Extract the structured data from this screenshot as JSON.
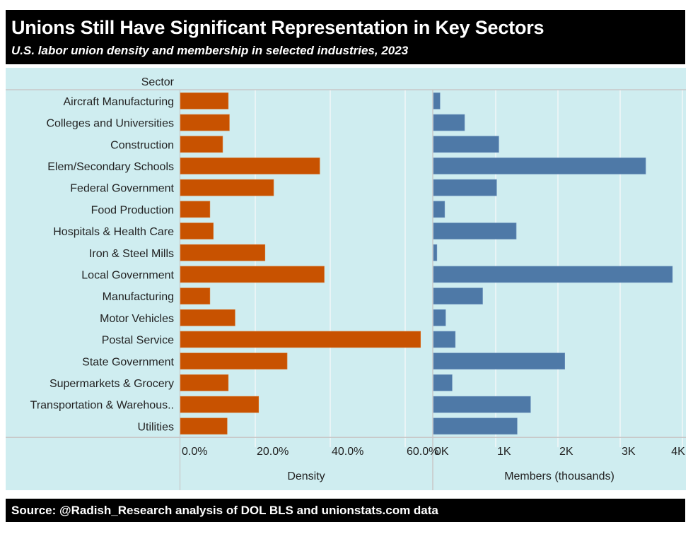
{
  "header": {
    "title": "Unions Still Have Significant Representation in Key Sectors",
    "subtitle": "U.S. labor union density and membership in selected industries, 2023"
  },
  "footer": {
    "source": "Source: @Radish_Research analysis of DOL BLS and unionstats.com data"
  },
  "colors": {
    "density_bar": "#C85200",
    "members_bar": "#4E79A7",
    "panel_bg": "#CFEDF0",
    "gridline": "#F2F7F8",
    "axis_line": "#C8C8C8"
  },
  "chart_data": {
    "type": "bar",
    "orientation": "horizontal",
    "row_header": "Sector",
    "categories": [
      "Aircraft Manufacturing",
      "Colleges and Universities",
      "Construction",
      "Elem/Secondary Schools",
      "Federal Government",
      "Food Production",
      "Hospitals & Health Care",
      "Iron & Steel Mills",
      "Local Government",
      "Manufacturing",
      "Motor Vehicles",
      "Postal Service",
      "State Government",
      "Supermarkets & Grocery",
      "Transportation & Warehous..",
      "Utilities"
    ],
    "panels": [
      {
        "name": "Density",
        "xlabel": "Density",
        "unit": "percent",
        "xlim": [
          0,
          66
        ],
        "ticks": [
          0,
          20,
          40,
          60
        ],
        "tick_labels": [
          "0.0%",
          "20.0%",
          "40.0%",
          "60.0%"
        ],
        "values": [
          12.8,
          13.1,
          11.3,
          37.2,
          24.9,
          7.9,
          8.8,
          22.6,
          38.4,
          7.9,
          14.6,
          64.1,
          28.5,
          12.8,
          20.9,
          12.5
        ]
      },
      {
        "name": "Members",
        "xlabel": "Members (thousands)",
        "unit": "thousands",
        "xlim": [
          0,
          4000
        ],
        "ticks": [
          0,
          1000,
          2000,
          3000,
          4000
        ],
        "tick_labels": [
          "0K",
          "1K",
          "2K",
          "3K",
          "4K"
        ],
        "values": [
          105,
          500,
          1050,
          3410,
          1015,
          180,
          1330,
          55,
          3840,
          790,
          195,
          350,
          2110,
          300,
          1560,
          1345
        ]
      }
    ],
    "grid": true,
    "legend": "none"
  }
}
